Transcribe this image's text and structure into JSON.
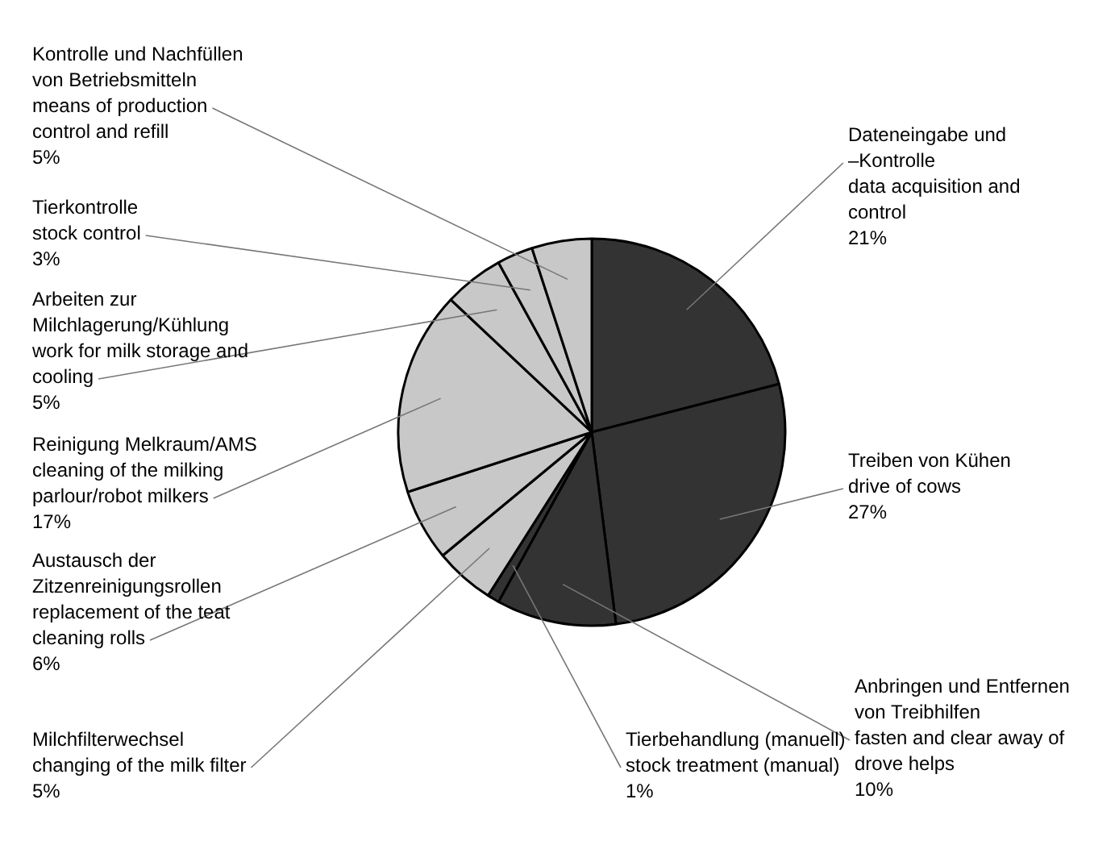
{
  "chart_data": {
    "type": "pie",
    "categories": [
      "Dateneingabe und\n–Kontrolle\ndata acquisition and\ncontrol",
      "Treiben von Kühen\ndrive of cows",
      "Anbringen und Entfernen\nvon Treibhilfen\nfasten and clear away of\ndrove helps",
      "Tierbehandlung (manuell)\nstock treatment (manual)",
      "Milchfilterwechsel\nchanging of the milk filter",
      "Austausch der\nZitzenreinigungsrollen\nreplacement of the teat\ncleaning rolls",
      "Reinigung Melkraum/AMS\ncleaning of the milking\nparlour/robot milkers",
      "Arbeiten zur\nMilchlagerung/Kühlung\nwork for milk storage and\ncooling",
      "Tierkontrolle\nstock control",
      "Kontrolle und Nachfüllen\nvon Betriebsmitteln\nmeans of production\ncontrol and refill"
    ],
    "values": [
      21,
      27,
      10,
      1,
      5,
      6,
      17,
      5,
      3,
      5
    ],
    "value_labels": [
      "21%",
      "27%",
      "10%",
      "1%",
      "5%",
      "6%",
      "17%",
      "5%",
      "3%",
      "5%"
    ],
    "colors": [
      "#333333",
      "#333333",
      "#333333",
      "#333333",
      "#c8c8c8",
      "#c8c8c8",
      "#c8c8c8",
      "#c8c8c8",
      "#c8c8c8",
      "#c8c8c8"
    ],
    "legend": false
  }
}
